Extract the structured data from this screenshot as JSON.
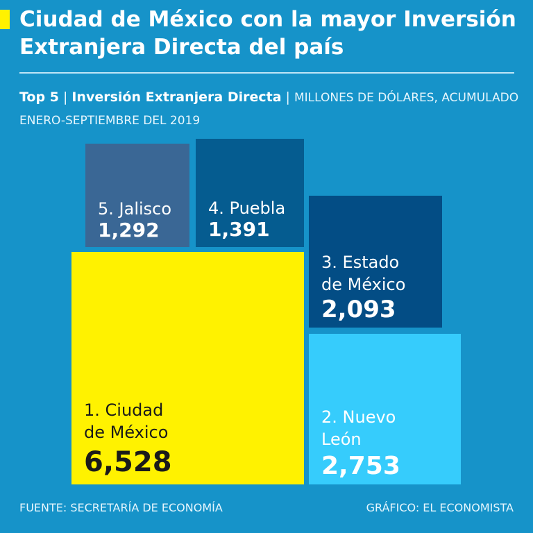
{
  "header": {
    "title": "Ciudad de México con la mayor Inversión Extranjera Directa del país",
    "accent_color": "#fff200"
  },
  "subtitle": {
    "part1": "Top 5",
    "part2": "Inversión Extranjera Directa",
    "part3": "MILLONES DE DÓLARES, ACUMULADO ENERO-SEPTIEMBRE DEL 2019"
  },
  "chart_data": {
    "type": "treemap",
    "title": "Top 5 | Inversión Extranjera Directa",
    "units": "MILLONES DE DÓLARES, ACUMULADO ENERO-SEPTIEMBRE DEL 2019",
    "items": [
      {
        "rank": 1,
        "label": "1. Ciudad\nde México",
        "value": 6528,
        "value_label": "6,528",
        "color": "#fff200"
      },
      {
        "rank": 2,
        "label": "2. Nuevo\nLeón",
        "value": 2753,
        "value_label": "2,753",
        "color": "#36ccfc"
      },
      {
        "rank": 3,
        "label": "3. Estado\nde México",
        "value": 2093,
        "value_label": "2,093",
        "color": "#034d85"
      },
      {
        "rank": 4,
        "label": "4. Puebla",
        "value": 1391,
        "value_label": "1,391",
        "color": "#055c90"
      },
      {
        "rank": 5,
        "label": "5. Jalisco",
        "value": 1292,
        "value_label": "1,292",
        "color": "#3a6795"
      }
    ]
  },
  "footer": {
    "source": "FUENTE: SECRETARÍA DE ECONOMÍA",
    "credit": "GRÁFICO: EL ECONOMISTA"
  }
}
